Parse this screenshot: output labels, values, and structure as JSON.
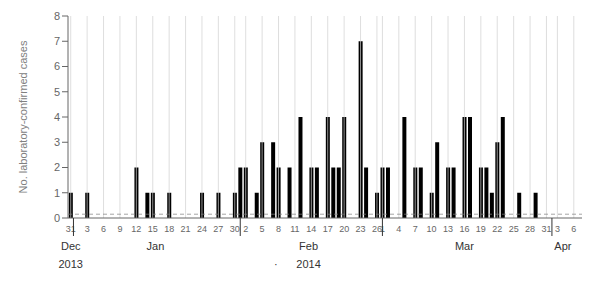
{
  "chart_data": {
    "type": "bar",
    "ylabel": "No. laboratory-confirmed cases",
    "categories": [
      "31",
      null,
      null,
      "3",
      null,
      null,
      "6",
      null,
      null,
      "9",
      null,
      null,
      "12",
      null,
      null,
      "15",
      null,
      null,
      "18",
      null,
      null,
      "21",
      null,
      null,
      "24",
      null,
      null,
      "27",
      null,
      null,
      "30",
      null,
      "2",
      null,
      null,
      "5",
      null,
      null,
      "8",
      null,
      null,
      "11",
      null,
      null,
      "14",
      null,
      null,
      "17",
      null,
      null,
      "20",
      null,
      null,
      "23",
      null,
      null,
      "26",
      "1",
      null,
      null,
      "4",
      null,
      null,
      "7",
      null,
      null,
      "10",
      null,
      null,
      "13",
      null,
      null,
      "16",
      null,
      null,
      "19",
      null,
      null,
      "22",
      null,
      null,
      "25",
      null,
      null,
      "28",
      null,
      null,
      "31",
      null,
      "3",
      null,
      null,
      "6",
      null
    ],
    "values": [
      1,
      0,
      0,
      1,
      0,
      0,
      0,
      0,
      0,
      0,
      0,
      0,
      2,
      0,
      1,
      1,
      0,
      0,
      1,
      0,
      0,
      0,
      0,
      0,
      1,
      0,
      0,
      1,
      0,
      0,
      1,
      2,
      2,
      0,
      1,
      3,
      0,
      3,
      2,
      0,
      2,
      0,
      4,
      0,
      2,
      2,
      0,
      4,
      2,
      2,
      4,
      0,
      0,
      7,
      2,
      0,
      1,
      2,
      2,
      0,
      0,
      4,
      0,
      2,
      2,
      0,
      1,
      3,
      0,
      2,
      2,
      0,
      4,
      4,
      0,
      2,
      2,
      1,
      3,
      4,
      0,
      0,
      1,
      0,
      0,
      1,
      0,
      0,
      0,
      0,
      0,
      0,
      0,
      0
    ],
    "color": "#000000",
    "ylim": [
      0,
      8
    ],
    "yticks": [
      0,
      1,
      2,
      3,
      4,
      5,
      6,
      7,
      8
    ],
    "grid": "x",
    "reference_line_y": 0.15,
    "month_boundaries": [
      0.5,
      31.0,
      57.0,
      88.0
    ],
    "month_labels": [
      {
        "label": "Dec",
        "x": 0
      },
      {
        "label": "Jan",
        "x": 15.5
      },
      {
        "label": "Feb",
        "x": 43.5
      },
      {
        "label": "Mar",
        "x": 72.0
      },
      {
        "label": "Apr",
        "x": 90.0
      }
    ],
    "year_labels": [
      {
        "label": "2013",
        "x": 0
      },
      {
        "label": "·",
        "x": 37.5
      },
      {
        "label": "2014",
        "x": 43.5
      }
    ]
  }
}
